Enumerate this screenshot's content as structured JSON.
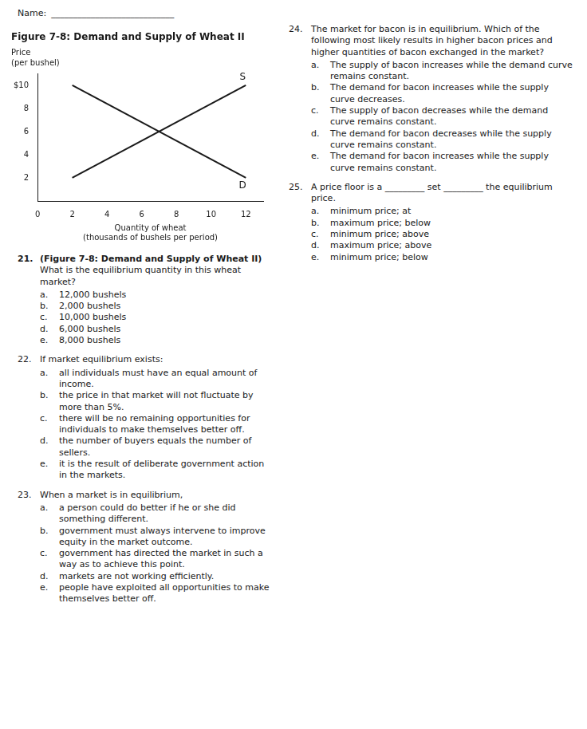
{
  "chart_data": {
    "type": "line",
    "title": "Figure 7-8: Demand and Supply of Wheat II",
    "xlabel": "Quantity of wheat\n(thousands of bushels per period)",
    "ylabel": "Price\n(per bushel)",
    "xlim": [
      0,
      13
    ],
    "ylim": [
      0,
      11
    ],
    "xticks": [
      0,
      2,
      4,
      6,
      8,
      10,
      12
    ],
    "yticks": [
      2,
      4,
      6,
      8,
      {
        "value": 10,
        "label": "$10"
      }
    ],
    "grid": false,
    "series": [
      {
        "name": "S",
        "color": "#1a1a1a",
        "x": [
          2,
          12
        ],
        "values": [
          2,
          10
        ]
      },
      {
        "name": "D",
        "color": "#1a1a1a",
        "x": [
          2,
          12
        ],
        "values": [
          10,
          2
        ]
      }
    ],
    "annotations": [
      {
        "text": "Name:"
      },
      {
        "text": "____________________________"
      },
      {
        "number": "21.",
        "stem_bold": "(Figure 7-8: Demand and Supply of Wheat II)",
        "stem": "What is the equilibrium quantity in this wheat market?",
        "options": [
          {
            "letter": "a.",
            "text": "12,000 bushels"
          },
          {
            "letter": "b.",
            "text": "2,000 bushels"
          },
          {
            "letter": "c.",
            "text": "10,000 bushels"
          },
          {
            "letter": "d.",
            "text": "6,000 bushels"
          },
          {
            "letter": "e.",
            "text": "8,000 bushels"
          }
        ]
      },
      {
        "number": "22.",
        "stem": "If market equilibrium exists:",
        "options": [
          {
            "letter": "a.",
            "text": "all individuals must have an equal amount of income."
          },
          {
            "letter": "b.",
            "text": "the price in that market will not fluctuate by more than 5%."
          },
          {
            "letter": "c.",
            "text": "there will be no remaining opportunities for individuals to make themselves better off."
          },
          {
            "letter": "d.",
            "text": "the number of buyers equals the number of sellers."
          },
          {
            "letter": "e.",
            "text": "it is the result of deliberate government action in the markets."
          }
        ]
      },
      {
        "number": "23.",
        "stem": "When a market is in equilibrium,",
        "options": [
          {
            "letter": "a.",
            "text": "a person could do better if he or she did something different."
          },
          {
            "letter": "b.",
            "text": "government must always intervene to improve equity in the market outcome."
          },
          {
            "letter": "c.",
            "text": "government has directed the market in such a way as to achieve this point."
          },
          {
            "letter": "d.",
            "text": "markets are not working efficiently."
          },
          {
            "letter": "e.",
            "text": "people have exploited all opportunities to make themselves better off."
          }
        ]
      },
      {
        "number": "24.",
        "stem": "The market for bacon is in equilibrium.  Which of the following most likely results in higher bacon prices and higher quantities of bacon exchanged in the market?",
        "options": [
          {
            "letter": "a.",
            "text": "The supply of bacon increases while the demand curve remains constant."
          },
          {
            "letter": "b.",
            "text": "The demand for bacon increases while the supply curve decreases."
          },
          {
            "letter": "c.",
            "text": "The supply of bacon decreases while the demand curve remains constant."
          },
          {
            "letter": "d.",
            "text": "The demand for bacon decreases while the supply curve remains constant."
          },
          {
            "letter": "e.",
            "text": "The demand for bacon increases while the supply curve remains constant."
          }
        ]
      },
      {
        "number": "25.",
        "stem": "A price floor is a _________ set _________ the equilibrium price.",
        "options": [
          {
            "letter": "a.",
            "text": "minimum price; at"
          },
          {
            "letter": "b.",
            "text": "maximum price; below"
          },
          {
            "letter": "c.",
            "text": "minimum price; above"
          },
          {
            "letter": "d.",
            "text": "maximum price; above"
          },
          {
            "letter": "e.",
            "text": "minimum price; below"
          }
        ]
      }
    ]
  }
}
